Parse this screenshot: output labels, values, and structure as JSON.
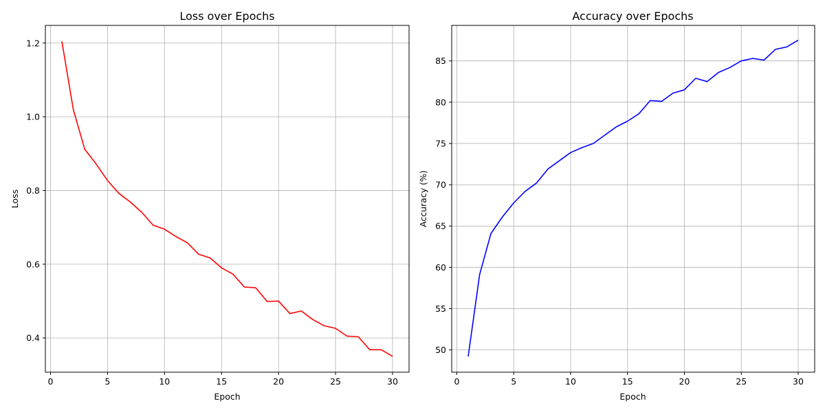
{
  "chart_data": [
    {
      "type": "line",
      "title": "Loss over Epochs",
      "xlabel": "Epoch",
      "ylabel": "Loss",
      "grid": true,
      "xlim": [
        -0.45,
        31.45
      ],
      "ylim": [
        0.307,
        1.248
      ],
      "xticks": [
        0,
        5,
        10,
        15,
        20,
        25,
        30
      ],
      "yticks": [
        0.4,
        0.6,
        0.8,
        1.0,
        1.2
      ],
      "ytick_labels": [
        "0.4",
        "0.6",
        "0.8",
        "1.0",
        "1.2"
      ],
      "series": [
        {
          "color": "#ff0000",
          "x": [
            1,
            2,
            3,
            4,
            5,
            6,
            7,
            8,
            9,
            10,
            11,
            12,
            13,
            14,
            15,
            16,
            17,
            18,
            19,
            20,
            21,
            22,
            23,
            24,
            25,
            26,
            27,
            28,
            29,
            30
          ],
          "y": [
            1.205,
            1.02,
            0.912,
            0.872,
            0.827,
            0.792,
            0.769,
            0.741,
            0.706,
            0.695,
            0.675,
            0.658,
            0.627,
            0.617,
            0.59,
            0.573,
            0.538,
            0.536,
            0.499,
            0.5,
            0.466,
            0.473,
            0.45,
            0.433,
            0.426,
            0.405,
            0.403,
            0.368,
            0.368,
            0.35
          ]
        }
      ]
    },
    {
      "type": "line",
      "title": "Accuracy over Epochs",
      "xlabel": "Epoch",
      "ylabel": "Accuracy (%)",
      "grid": true,
      "xlim": [
        -0.45,
        31.45
      ],
      "ylim": [
        47.3,
        89.3
      ],
      "xticks": [
        0,
        5,
        10,
        15,
        20,
        25,
        30
      ],
      "yticks": [
        50,
        55,
        60,
        65,
        70,
        75,
        80,
        85
      ],
      "ytick_labels": [
        "50",
        "55",
        "60",
        "65",
        "70",
        "75",
        "80",
        "85"
      ],
      "series": [
        {
          "color": "#0000ff",
          "x": [
            1,
            2,
            3,
            4,
            5,
            6,
            7,
            8,
            9,
            10,
            11,
            12,
            13,
            14,
            15,
            16,
            17,
            18,
            19,
            20,
            21,
            22,
            23,
            24,
            25,
            26,
            27,
            28,
            29,
            30
          ],
          "y": [
            49.2,
            59.1,
            64.1,
            66.1,
            67.8,
            69.2,
            70.2,
            71.9,
            72.9,
            73.9,
            74.5,
            75.0,
            76.0,
            77.0,
            77.7,
            78.6,
            80.2,
            80.1,
            81.1,
            81.5,
            82.9,
            82.5,
            83.6,
            84.2,
            85.0,
            85.3,
            85.1,
            86.4,
            86.7,
            87.5
          ]
        }
      ]
    }
  ]
}
